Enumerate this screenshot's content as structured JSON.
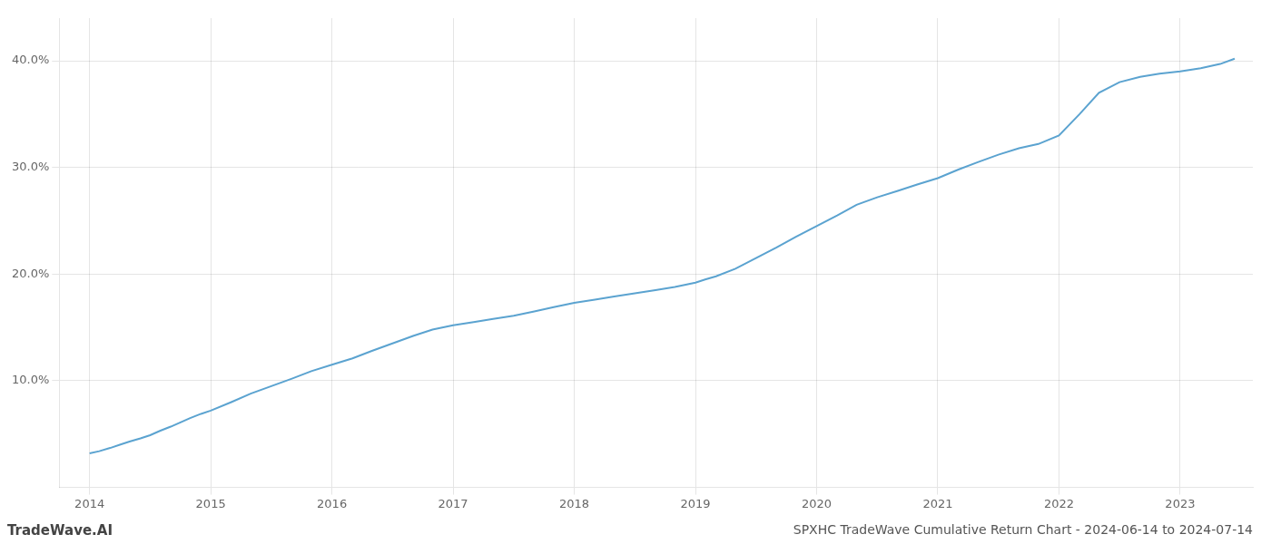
{
  "chart_data": {
    "type": "line",
    "title": "SPXHC TradeWave Cumulative Return Chart - 2024-06-14 to 2024-07-14",
    "annotations": [
      "TradeWave.AI"
    ],
    "color": "#5ba3d0",
    "x": [
      2014.0,
      2014.08,
      2014.17,
      2014.25,
      2014.33,
      2014.42,
      2014.5,
      2014.58,
      2014.67,
      2014.75,
      2014.83,
      2014.92,
      2015.0,
      2015.17,
      2015.33,
      2015.5,
      2015.67,
      2015.83,
      2016.0,
      2016.17,
      2016.33,
      2016.5,
      2016.67,
      2016.83,
      2017.0,
      2017.17,
      2017.33,
      2017.5,
      2017.67,
      2017.83,
      2018.0,
      2018.17,
      2018.33,
      2018.5,
      2018.67,
      2018.83,
      2019.0,
      2019.08,
      2019.17,
      2019.33,
      2019.5,
      2019.67,
      2019.83,
      2020.0,
      2020.17,
      2020.33,
      2020.5,
      2020.67,
      2020.83,
      2021.0,
      2021.17,
      2021.33,
      2021.5,
      2021.67,
      2021.83,
      2022.0,
      2022.17,
      2022.33,
      2022.5,
      2022.67,
      2022.83,
      2023.0,
      2023.17,
      2023.33,
      2023.45
    ],
    "values": [
      3.2,
      3.4,
      3.7,
      4.0,
      4.3,
      4.6,
      4.9,
      5.3,
      5.7,
      6.1,
      6.5,
      6.9,
      7.2,
      8.0,
      8.8,
      9.5,
      10.2,
      10.9,
      11.5,
      12.1,
      12.8,
      13.5,
      14.2,
      14.8,
      15.2,
      15.5,
      15.8,
      16.1,
      16.5,
      16.9,
      17.3,
      17.6,
      17.9,
      18.2,
      18.5,
      18.8,
      19.2,
      19.5,
      19.8,
      20.5,
      21.5,
      22.5,
      23.5,
      24.5,
      25.5,
      26.5,
      27.2,
      27.8,
      28.4,
      29.0,
      29.8,
      30.5,
      31.2,
      31.8,
      32.2,
      33.0,
      35.0,
      37.0,
      38.0,
      38.5,
      38.8,
      39.0,
      39.3,
      39.7,
      40.2
    ],
    "xlim": [
      2013.75,
      2023.6
    ],
    "xticks": [
      2014,
      2015,
      2016,
      2017,
      2018,
      2019,
      2020,
      2021,
      2022,
      2023
    ],
    "ylim": [
      0,
      44
    ],
    "yticks": [
      {
        "value": 10.0,
        "label": "10.0%"
      },
      {
        "value": 20.0,
        "label": "20.0%"
      },
      {
        "value": 30.0,
        "label": "30.0%"
      },
      {
        "value": 40.0,
        "label": "40.0%"
      }
    ],
    "grid": true
  }
}
